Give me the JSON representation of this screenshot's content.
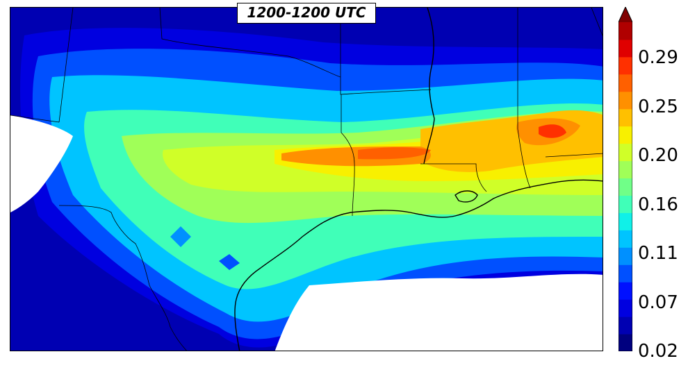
{
  "map": {
    "title": "1200-1200 UTC",
    "colors": {
      "land_blank": "#ffffff",
      "coastline": "#000000",
      "state_border": "#000000"
    },
    "features": [
      "contour-fill",
      "coastline",
      "state-borders",
      "gulf-of-mexico-blank"
    ]
  },
  "colorbar": {
    "extend": "max",
    "tick_labels": [
      "0.29",
      "0.25",
      "0.20",
      "0.16",
      "0.11",
      "0.07",
      "0.02"
    ],
    "levels": [
      "#00007f",
      "#0000b2",
      "#0000e0",
      "#0010ff",
      "#0050ff",
      "#0090ff",
      "#00c4ff",
      "#10f0e8",
      "#40ffb8",
      "#70ff88",
      "#a0ff58",
      "#d0ff28",
      "#f8f000",
      "#ffc000",
      "#ff9000",
      "#ff6000",
      "#ff3000",
      "#e00000",
      "#b00000"
    ],
    "overflow_color": "#800000"
  }
}
